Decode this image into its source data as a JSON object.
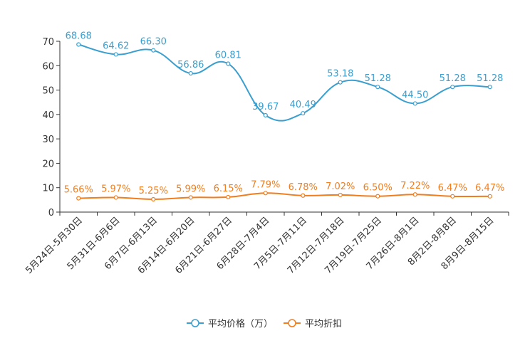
{
  "chart_data": {
    "type": "line",
    "title": "",
    "xlabel": "",
    "ylabel": "",
    "ylim": [
      0,
      70
    ],
    "yticks": [
      0,
      10,
      20,
      30,
      40,
      50,
      60,
      70
    ],
    "categories": [
      "5月24日-5月30日",
      "5月31日-6月6日",
      "6月7日-6月13日",
      "6月14日-6月20日",
      "6月21日-6月27日",
      "6月28日-7月4日",
      "7月5日-7月11日",
      "7月12日-7月18日",
      "7月19日-7月25日",
      "7月26日-8月1日",
      "8月2日-8月8日",
      "8月9日-8月15日"
    ],
    "series": [
      {
        "name": "平均价格（万）",
        "color": "#3a9fcf",
        "values": [
          68.68,
          64.62,
          66.3,
          56.86,
          60.81,
          39.67,
          40.49,
          53.18,
          51.28,
          44.5,
          51.28,
          51.28
        ],
        "labels": [
          "68.68",
          "64.62",
          "66.30",
          "56.86",
          "60.81",
          "39.67",
          "40.49",
          "53.18",
          "51.28",
          "44.50",
          "51.28",
          "51.28"
        ]
      },
      {
        "name": "平均折扣",
        "color": "#f07e1f",
        "values": [
          5.66,
          5.97,
          5.25,
          5.99,
          6.15,
          7.79,
          6.78,
          7.02,
          6.5,
          7.22,
          6.47,
          6.47
        ],
        "labels": [
          "5.66%",
          "5.97%",
          "5.25%",
          "5.99%",
          "6.15%",
          "7.79%",
          "6.78%",
          "7.02%",
          "6.50%",
          "7.22%",
          "6.47%",
          "6.47%"
        ]
      }
    ],
    "legend_position": "bottom-center"
  }
}
